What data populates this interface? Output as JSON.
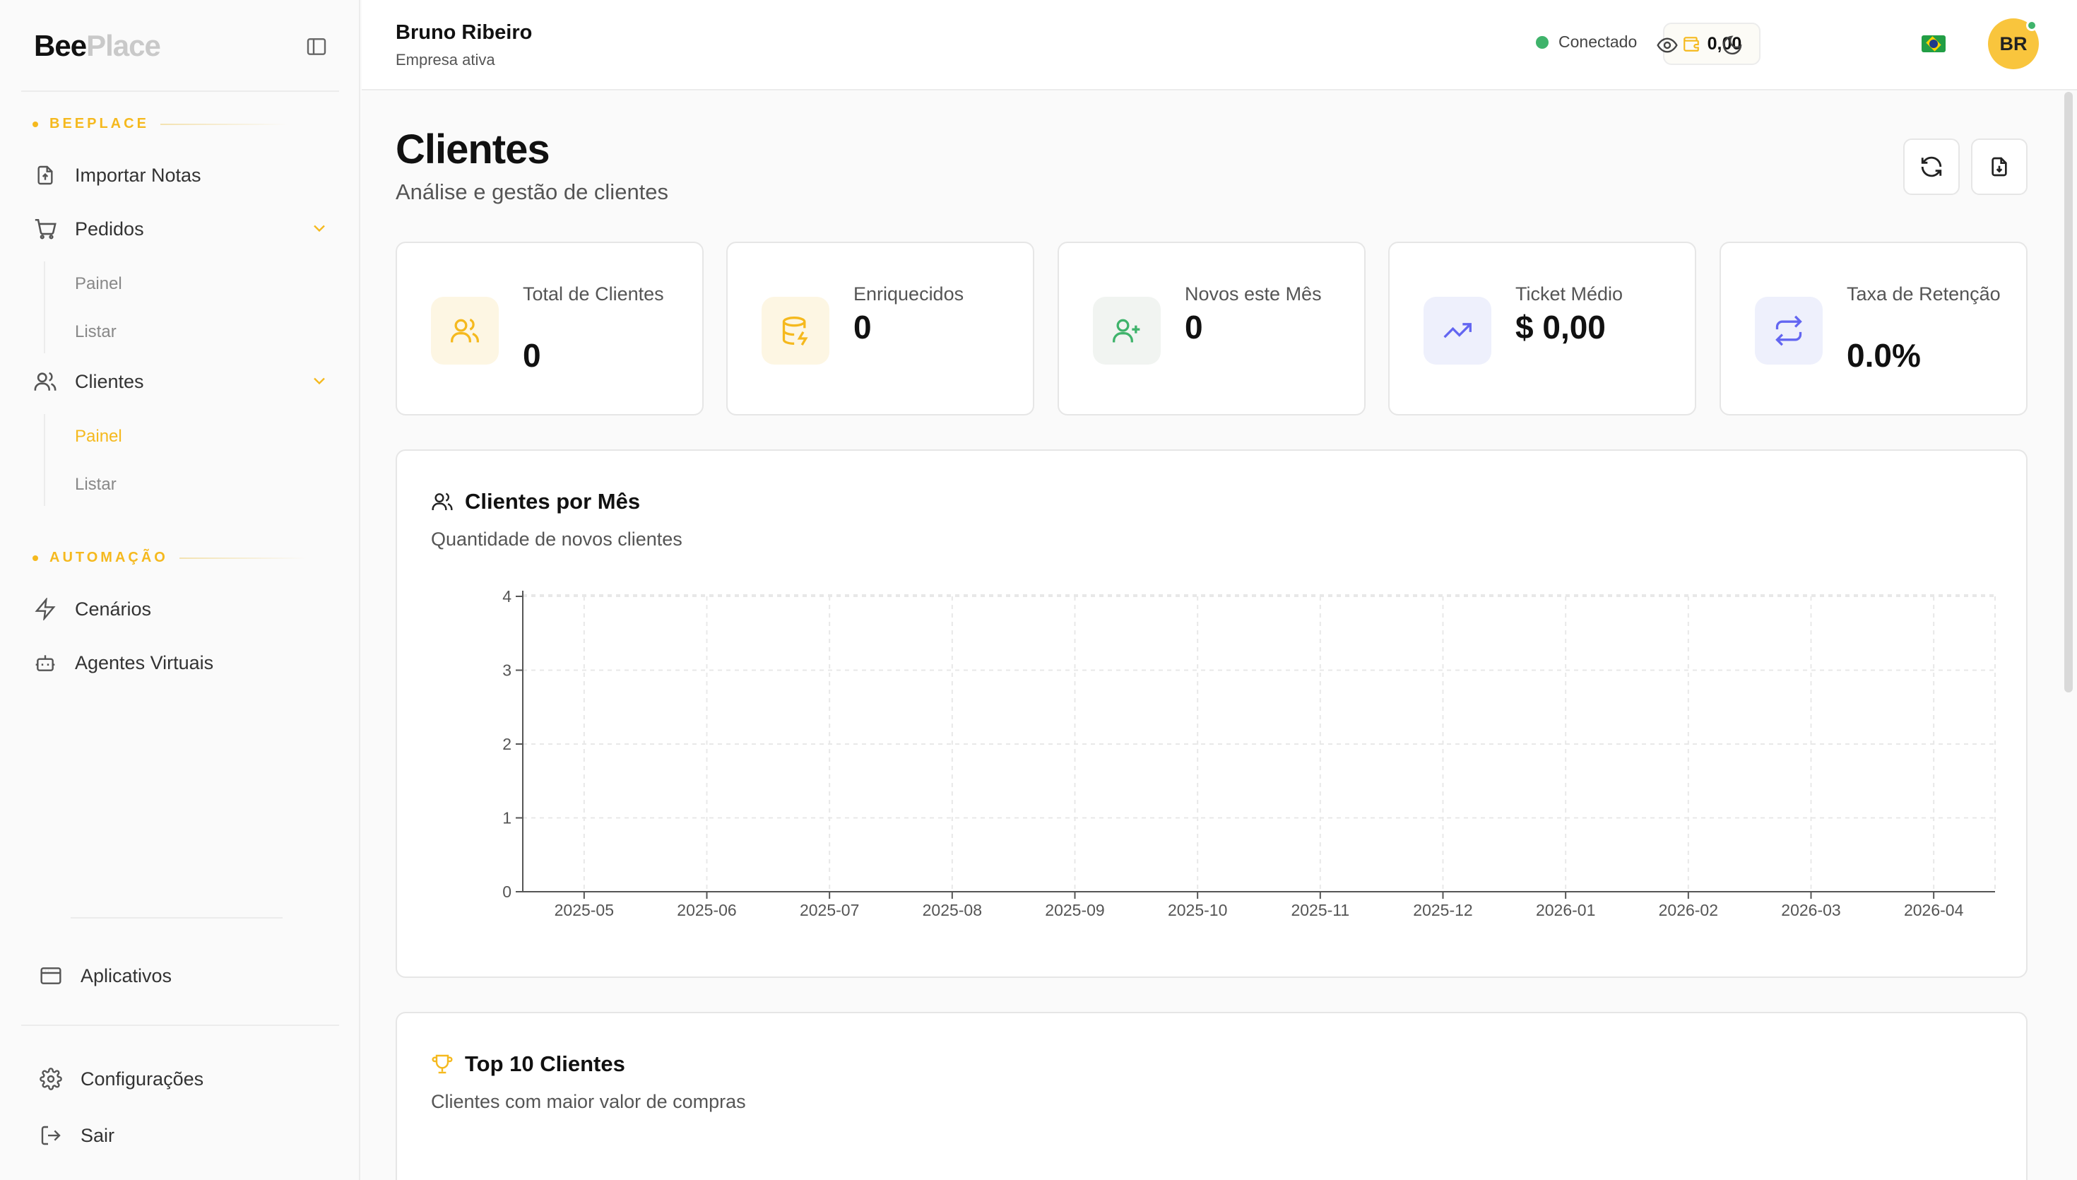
{
  "brand": {
    "part1": "Bee",
    "part2": "Place"
  },
  "sidebar": {
    "section1": "BEEPLACE",
    "section2": "AUTOMAÇÃO",
    "items": {
      "importar": "Importar Notas",
      "pedidos": "Pedidos",
      "pedidos_painel": "Painel",
      "pedidos_listar": "Listar",
      "clientes": "Clientes",
      "clientes_painel": "Painel",
      "clientes_listar": "Listar",
      "cenarios": "Cenários",
      "agentes": "Agentes Virtuais",
      "aplicativos": "Aplicativos",
      "configuracoes": "Configurações",
      "sair": "Sair"
    }
  },
  "header": {
    "user_name": "Bruno Ribeiro",
    "user_sub": "Empresa ativa",
    "status": "Conectado",
    "status_color": "#3fb36b",
    "wallet": "0,00",
    "avatar": "BR"
  },
  "page": {
    "title": "Clientes",
    "subtitle": "Análise e gestão de clientes"
  },
  "stats": [
    {
      "label": "Total de Clientes",
      "value": "0",
      "icon": "users-icon",
      "color": "#f5b91e"
    },
    {
      "label": "Enriquecidos",
      "value": "0",
      "icon": "database-zap-icon",
      "color": "#f5b91e"
    },
    {
      "label": "Novos este Mês",
      "value": "0",
      "icon": "user-plus-icon",
      "color": "#3fb36b"
    },
    {
      "label": "Ticket Médio",
      "value": "$ 0,00",
      "icon": "trending-up-icon",
      "color": "#6366f1"
    },
    {
      "label": "Taxa de Retenção",
      "value": "0.0%",
      "icon": "repeat-icon",
      "color": "#6366f1"
    }
  ],
  "chart_panel": {
    "title": "Clientes por Mês",
    "subtitle": "Quantidade de novos clientes"
  },
  "chart_data": {
    "type": "bar",
    "title": "Clientes por Mês",
    "subtitle": "Quantidade de novos clientes",
    "categories": [
      "2025-05",
      "2025-06",
      "2025-07",
      "2025-08",
      "2025-09",
      "2025-10",
      "2025-11",
      "2025-12",
      "2026-01",
      "2026-02",
      "2026-03",
      "2026-04"
    ],
    "values": [
      0,
      0,
      0,
      0,
      0,
      0,
      0,
      0,
      0,
      0,
      0,
      0
    ],
    "yticks": [
      0,
      1,
      2,
      3,
      4
    ],
    "ylim": [
      0,
      4
    ],
    "grid": true,
    "xlabel": "",
    "ylabel": ""
  },
  "top_panel": {
    "title": "Top 10 Clientes",
    "subtitle": "Clientes com maior valor de compras"
  }
}
